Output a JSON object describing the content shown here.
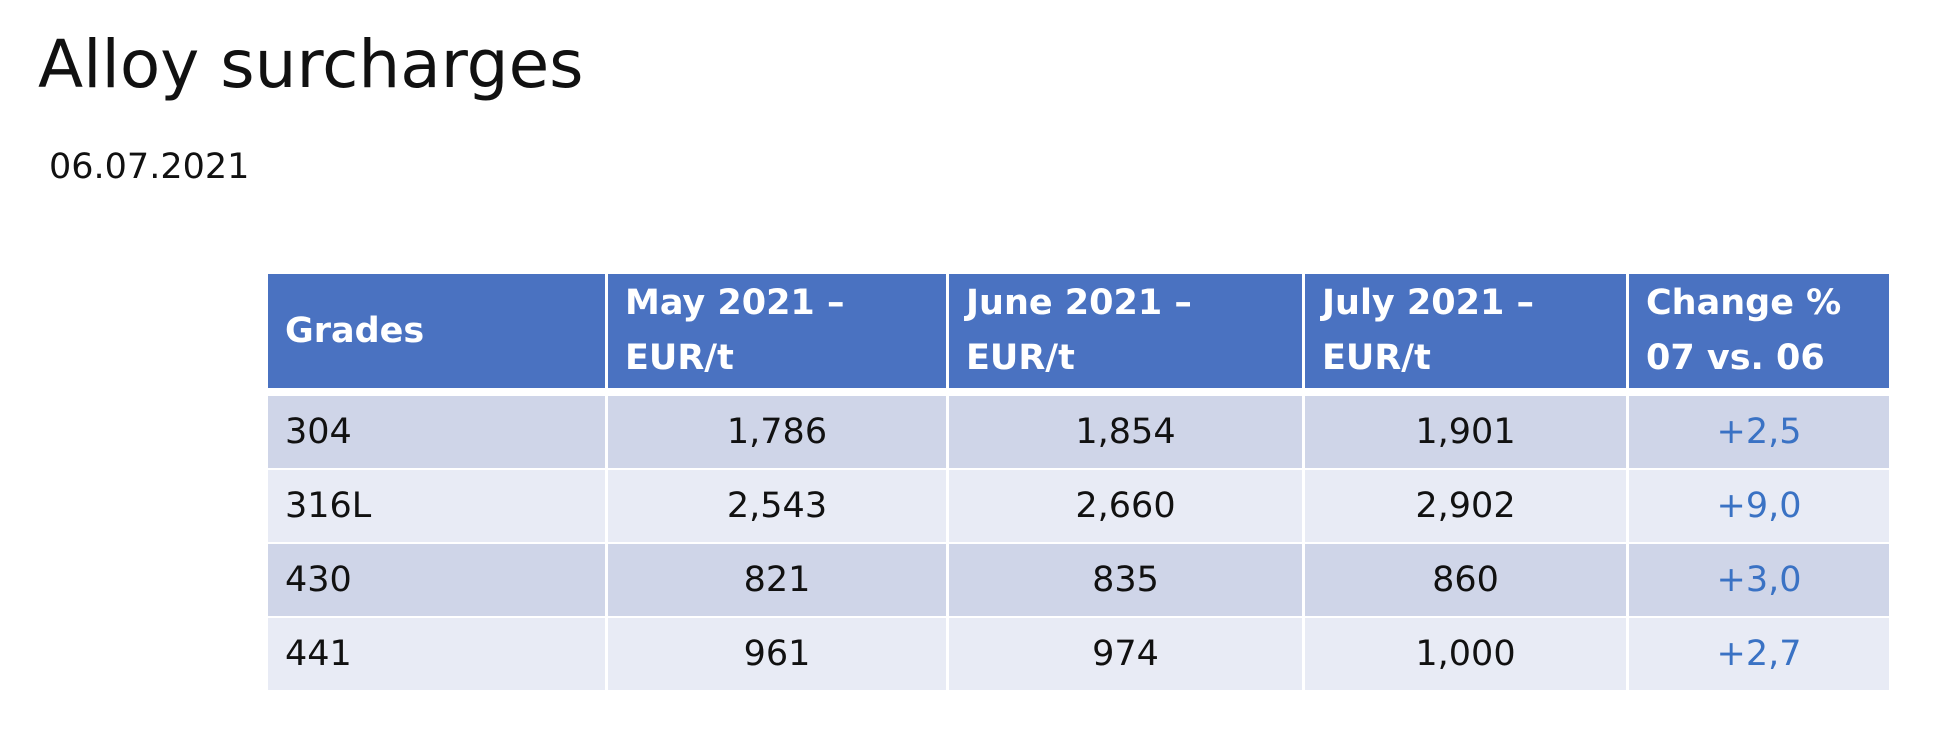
{
  "title": "Alloy surcharges",
  "date": "06.07.2021",
  "table": {
    "headers": {
      "grades": "Grades",
      "may_line1": "May 2021 –",
      "may_line2": "EUR/t",
      "june_line1": "June 2021 –",
      "june_line2": "EUR/t",
      "july_line1": "July 2021 –",
      "july_line2": "EUR/t",
      "change_line1": "Change %",
      "change_line2": "07 vs. 06"
    },
    "rows": [
      {
        "grade": "304",
        "may": "1,786",
        "june": "1,854",
        "july": "1,901",
        "change": "+2,5"
      },
      {
        "grade": "316L",
        "may": "2,543",
        "june": "2,660",
        "july": "2,902",
        "change": "+9,0"
      },
      {
        "grade": "430",
        "may": "821",
        "june": "835",
        "july": "860",
        "change": "+3,0"
      },
      {
        "grade": "441",
        "may": "961",
        "june": "974",
        "july": "1,000",
        "change": "+2,7"
      }
    ]
  },
  "colors": {
    "header_background": "#4a72c1",
    "row_odd_background": "#cfd5e8",
    "row_even_background": "#e8ebf5",
    "change_text": "#3a72c4"
  }
}
